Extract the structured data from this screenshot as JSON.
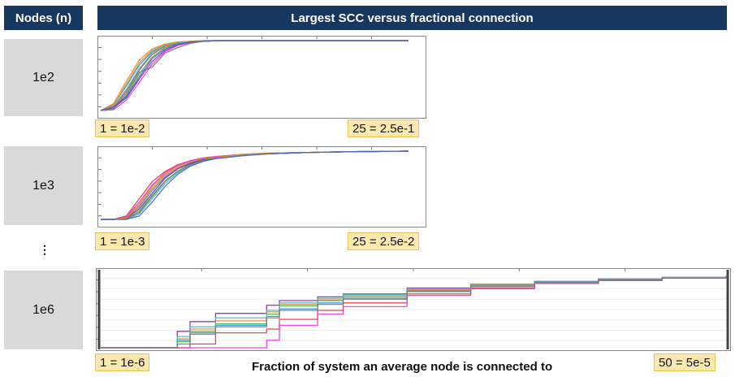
{
  "header": {
    "nodes_label": "Nodes (n)",
    "title": "Largest SCC versus fractional connection"
  },
  "rows": [
    {
      "label": "1e2",
      "x_start_label": "1 = 1e-2",
      "x_end_label": "25 = 2.5e-1"
    },
    {
      "label": "1e3",
      "x_start_label": "1 = 1e-3",
      "x_end_label": "25 = 2.5e-2"
    },
    {
      "label": "1e6",
      "x_start_label": "1 = 1e-6",
      "x_end_label": "50 = 5e-5"
    }
  ],
  "ellipsis": "⋮",
  "x_caption": "Fraction of system an average node is connected to",
  "colors": [
    "#e23a3a",
    "#3a8fd9",
    "#3cb44b",
    "#f58231",
    "#911eb4",
    "#46c0c0",
    "#f032e6",
    "#7a7a7a",
    "#c49a2a",
    "#4363d8",
    "#e6194b",
    "#a0d040"
  ],
  "chart_data": [
    {
      "type": "line",
      "xlabel": "",
      "ylabel": "",
      "xlim": [
        1,
        25
      ],
      "ylim": [
        0,
        1
      ],
      "grid": false,
      "series": [
        {
          "x": [
            1,
            2,
            3,
            4,
            5,
            6,
            7,
            8,
            9,
            10,
            12,
            14,
            17,
            20,
            25
          ],
          "values": [
            0.0,
            0.05,
            0.28,
            0.58,
            0.8,
            0.92,
            0.96,
            0.98,
            0.99,
            1.0,
            1.0,
            1.0,
            1.0,
            1.0,
            1.0
          ]
        },
        {
          "x": [
            1,
            2,
            3,
            4,
            5,
            6,
            7,
            8,
            9,
            10,
            12,
            14,
            17,
            20,
            25
          ],
          "values": [
            0.0,
            0.08,
            0.35,
            0.65,
            0.84,
            0.93,
            0.97,
            0.99,
            1.0,
            1.0,
            1.0,
            1.0,
            1.0,
            1.0,
            1.0
          ]
        },
        {
          "x": [
            1,
            2,
            3,
            4,
            5,
            6,
            7,
            8,
            9,
            10,
            12,
            14,
            17,
            20,
            25
          ],
          "values": [
            0.0,
            0.02,
            0.22,
            0.52,
            0.76,
            0.9,
            0.95,
            0.98,
            0.99,
            1.0,
            1.0,
            1.0,
            1.0,
            1.0,
            1.0
          ]
        },
        {
          "x": [
            1,
            2,
            3,
            4,
            5,
            6,
            7,
            8,
            9,
            10,
            12,
            14,
            17,
            20,
            25
          ],
          "values": [
            0.0,
            0.1,
            0.42,
            0.72,
            0.88,
            0.95,
            0.98,
            0.99,
            1.0,
            1.0,
            1.0,
            1.0,
            1.0,
            1.0,
            1.0
          ]
        },
        {
          "x": [
            1,
            2,
            3,
            4,
            5,
            6,
            7,
            8,
            9,
            10,
            12,
            14,
            17,
            20,
            25
          ],
          "values": [
            0.0,
            0.04,
            0.18,
            0.45,
            0.7,
            0.86,
            0.94,
            0.97,
            0.99,
            1.0,
            1.0,
            1.0,
            1.0,
            1.0,
            1.0
          ]
        },
        {
          "x": [
            1,
            2,
            3,
            4,
            5,
            6,
            7,
            8,
            9,
            10,
            12,
            14,
            17,
            20,
            25
          ],
          "values": [
            0.0,
            0.06,
            0.3,
            0.6,
            0.82,
            0.93,
            0.97,
            0.99,
            1.0,
            1.0,
            1.0,
            1.0,
            1.0,
            1.0,
            1.0
          ]
        },
        {
          "x": [
            1,
            2,
            3,
            4,
            5,
            6,
            7,
            8,
            9,
            10,
            12,
            14,
            17,
            20,
            25
          ],
          "values": [
            0.0,
            0.01,
            0.15,
            0.4,
            0.66,
            0.84,
            0.93,
            0.97,
            0.99,
            1.0,
            1.0,
            1.0,
            1.0,
            1.0,
            1.0
          ]
        },
        {
          "x": [
            1,
            2,
            3,
            4,
            5,
            6,
            7,
            8,
            9,
            10,
            12,
            14,
            17,
            20,
            25
          ],
          "values": [
            0.0,
            0.03,
            0.25,
            0.55,
            0.62,
            0.82,
            0.9,
            0.96,
            0.99,
            1.0,
            1.0,
            1.0,
            1.0,
            1.0,
            1.0
          ]
        },
        {
          "x": [
            1,
            2,
            3,
            4,
            5,
            6,
            7,
            8,
            9,
            10,
            12,
            14,
            17,
            20,
            25
          ],
          "values": [
            0.0,
            0.07,
            0.38,
            0.68,
            0.86,
            0.94,
            0.98,
            0.99,
            1.0,
            1.0,
            1.0,
            1.0,
            1.0,
            1.0,
            1.0
          ]
        },
        {
          "x": [
            1,
            2,
            3,
            4,
            5,
            6,
            7,
            8,
            9,
            10,
            12,
            14,
            17,
            20,
            25
          ],
          "values": [
            0.0,
            0.05,
            0.2,
            0.48,
            0.74,
            0.88,
            0.95,
            0.98,
            0.99,
            1.0,
            1.0,
            1.0,
            1.0,
            1.0,
            1.0
          ]
        }
      ]
    },
    {
      "type": "line",
      "xlabel": "",
      "ylabel": "",
      "xlim": [
        1,
        25
      ],
      "ylim": [
        0,
        1
      ],
      "grid": false,
      "series": [
        {
          "x": [
            1,
            2,
            3,
            4,
            5,
            6,
            7,
            8,
            9,
            10,
            12,
            14,
            17,
            20,
            25
          ],
          "values": [
            0.0,
            0.0,
            0.05,
            0.3,
            0.55,
            0.7,
            0.8,
            0.86,
            0.9,
            0.92,
            0.95,
            0.97,
            0.98,
            0.99,
            1.0
          ]
        },
        {
          "x": [
            1,
            2,
            3,
            4,
            5,
            6,
            7,
            8,
            9,
            10,
            12,
            14,
            17,
            20,
            25
          ],
          "values": [
            0.0,
            0.0,
            0.02,
            0.18,
            0.42,
            0.62,
            0.75,
            0.83,
            0.88,
            0.91,
            0.94,
            0.96,
            0.98,
            0.99,
            1.0
          ]
        },
        {
          "x": [
            1,
            2,
            3,
            4,
            5,
            6,
            7,
            8,
            9,
            10,
            12,
            14,
            17,
            20,
            25
          ],
          "values": [
            0.0,
            0.0,
            0.01,
            0.12,
            0.35,
            0.56,
            0.71,
            0.81,
            0.87,
            0.9,
            0.94,
            0.96,
            0.98,
            0.99,
            1.0
          ]
        },
        {
          "x": [
            1,
            2,
            3,
            4,
            5,
            6,
            7,
            8,
            9,
            10,
            12,
            14,
            17,
            20,
            25
          ],
          "values": [
            0.0,
            0.0,
            0.03,
            0.22,
            0.48,
            0.66,
            0.78,
            0.85,
            0.89,
            0.92,
            0.95,
            0.97,
            0.98,
            0.99,
            1.0
          ]
        },
        {
          "x": [
            1,
            2,
            3,
            4,
            5,
            6,
            7,
            8,
            9,
            10,
            12,
            14,
            17,
            20,
            25
          ],
          "values": [
            0.0,
            0.0,
            0.02,
            0.15,
            0.38,
            0.6,
            0.74,
            0.82,
            0.88,
            0.91,
            0.94,
            0.96,
            0.98,
            0.99,
            1.0
          ]
        },
        {
          "x": [
            1,
            2,
            3,
            4,
            5,
            6,
            7,
            8,
            9,
            10,
            12,
            14,
            17,
            20,
            25
          ],
          "values": [
            0.0,
            0.0,
            0.0,
            0.08,
            0.3,
            0.52,
            0.68,
            0.79,
            0.86,
            0.9,
            0.94,
            0.96,
            0.98,
            0.99,
            1.0
          ]
        },
        {
          "x": [
            1,
            2,
            3,
            4,
            5,
            6,
            7,
            8,
            9,
            10,
            12,
            14,
            17,
            20,
            25
          ],
          "values": [
            0.0,
            0.0,
            0.04,
            0.25,
            0.5,
            0.68,
            0.79,
            0.86,
            0.9,
            0.92,
            0.95,
            0.97,
            0.98,
            0.99,
            1.0
          ]
        },
        {
          "x": [
            1,
            2,
            3,
            4,
            5,
            6,
            7,
            8,
            9,
            10,
            12,
            14,
            17,
            20,
            25
          ],
          "values": [
            0.0,
            0.0,
            0.01,
            0.1,
            0.33,
            0.55,
            0.7,
            0.8,
            0.86,
            0.9,
            0.94,
            0.96,
            0.98,
            0.99,
            1.0
          ]
        },
        {
          "x": [
            1,
            2,
            3,
            4,
            5,
            6,
            7,
            8,
            9,
            10,
            12,
            14,
            17,
            20,
            25
          ],
          "values": [
            0.0,
            0.0,
            0.02,
            0.2,
            0.45,
            0.64,
            0.76,
            0.84,
            0.89,
            0.91,
            0.95,
            0.97,
            0.98,
            0.99,
            1.0
          ]
        },
        {
          "x": [
            1,
            2,
            3,
            4,
            5,
            6,
            7,
            8,
            9,
            10,
            12,
            14,
            17,
            20,
            25
          ],
          "values": [
            0.0,
            0.0,
            0.0,
            0.05,
            0.25,
            0.48,
            0.66,
            0.78,
            0.85,
            0.89,
            0.93,
            0.96,
            0.98,
            0.99,
            1.0
          ]
        }
      ]
    },
    {
      "type": "line",
      "xlabel": "",
      "ylabel": "",
      "xlim": [
        1,
        50
      ],
      "ylim": [
        0,
        1
      ],
      "grid": true,
      "series": [
        {
          "x": [
            1,
            5,
            7,
            8,
            10,
            14,
            15,
            18,
            20,
            25,
            30,
            35,
            40,
            45,
            50
          ],
          "values": [
            0.0,
            0.0,
            0.0,
            0.05,
            0.2,
            0.25,
            0.38,
            0.5,
            0.6,
            0.72,
            0.8,
            0.86,
            0.9,
            0.93,
            0.95
          ]
        },
        {
          "x": [
            1,
            5,
            7,
            8,
            10,
            14,
            15,
            18,
            20,
            25,
            30,
            35,
            40,
            45,
            50
          ],
          "values": [
            0.0,
            0.0,
            0.1,
            0.2,
            0.3,
            0.42,
            0.52,
            0.6,
            0.66,
            0.76,
            0.83,
            0.88,
            0.91,
            0.94,
            0.96
          ]
        },
        {
          "x": [
            1,
            5,
            7,
            8,
            10,
            14,
            15,
            18,
            20,
            25,
            30,
            35,
            40,
            45,
            50
          ],
          "values": [
            0.0,
            0.0,
            0.08,
            0.22,
            0.32,
            0.45,
            0.56,
            0.63,
            0.68,
            0.77,
            0.84,
            0.88,
            0.91,
            0.94,
            0.96
          ]
        },
        {
          "x": [
            1,
            5,
            7,
            8,
            10,
            14,
            15,
            18,
            20,
            25,
            30,
            35,
            40,
            45,
            50
          ],
          "values": [
            0.0,
            0.0,
            0.12,
            0.25,
            0.36,
            0.48,
            0.58,
            0.64,
            0.7,
            0.78,
            0.84,
            0.89,
            0.92,
            0.94,
            0.96
          ]
        },
        {
          "x": [
            1,
            5,
            7,
            8,
            10,
            14,
            15,
            18,
            20,
            25,
            30,
            35,
            40,
            45,
            50
          ],
          "values": [
            0.0,
            0.0,
            0.22,
            0.35,
            0.46,
            0.57,
            0.63,
            0.68,
            0.72,
            0.8,
            0.85,
            0.89,
            0.92,
            0.94,
            0.96
          ]
        },
        {
          "x": [
            1,
            5,
            7,
            8,
            10,
            14,
            15,
            18,
            20,
            25,
            30,
            35,
            40,
            45,
            50
          ],
          "values": [
            0.0,
            0.0,
            0.15,
            0.28,
            0.4,
            0.5,
            0.6,
            0.66,
            0.71,
            0.79,
            0.85,
            0.89,
            0.92,
            0.94,
            0.96
          ]
        },
        {
          "x": [
            1,
            5,
            7,
            8,
            10,
            14,
            15,
            18,
            20,
            25,
            30,
            35,
            40,
            45,
            50
          ],
          "values": [
            0.0,
            0.0,
            0.0,
            0.0,
            0.0,
            0.1,
            0.3,
            0.45,
            0.55,
            0.7,
            0.79,
            0.86,
            0.9,
            0.93,
            0.95
          ]
        },
        {
          "x": [
            1,
            5,
            7,
            8,
            10,
            14,
            15,
            18,
            20,
            25,
            30,
            35,
            40,
            45,
            50
          ],
          "values": [
            0.0,
            0.0,
            0.05,
            0.18,
            0.28,
            0.4,
            0.5,
            0.58,
            0.65,
            0.75,
            0.82,
            0.87,
            0.91,
            0.93,
            0.95
          ]
        }
      ]
    }
  ]
}
